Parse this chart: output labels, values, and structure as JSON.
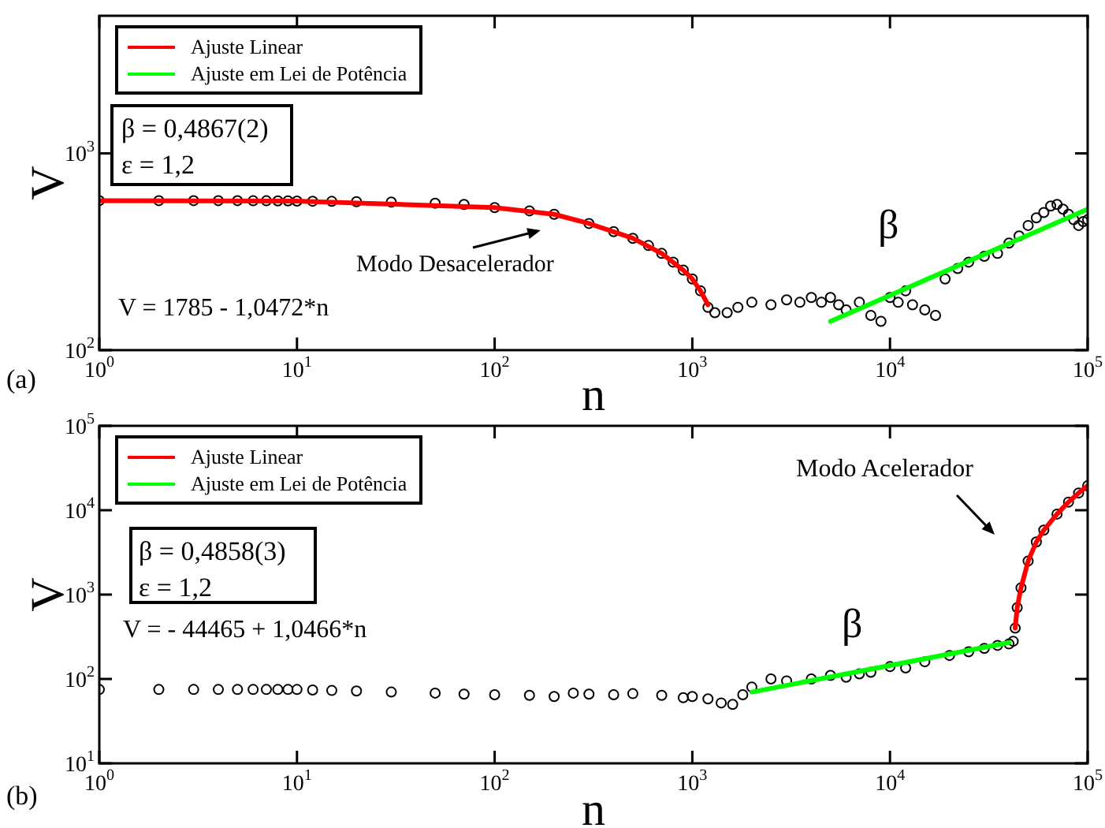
{
  "chart_data": [
    {
      "type": "scatter",
      "xlabel": "n",
      "ylabel": "V",
      "log": "xy",
      "legend": "top left",
      "xlim": [
        1,
        100000
      ],
      "ylim": [
        100,
        5000
      ],
      "xticks": [
        {
          "value": 1,
          "label": "10$^{0}$"
        },
        {
          "value": 10,
          "label": "10$^{1}$"
        },
        {
          "value": 100,
          "label": "10$^{2}$"
        },
        {
          "value": 1000,
          "label": "10$^{3}$"
        },
        {
          "value": 10000,
          "label": "10$^{4}$"
        },
        {
          "value": 100000,
          "label": "10$^{5}$"
        }
      ],
      "yticks": [
        {
          "value": 100,
          "label": "10$^{2}$"
        },
        {
          "value": 1000,
          "label": "10$^{3}$"
        }
      ],
      "annotations": [
        "β = 0,4867(2)",
        "ε = 1,2",
        "V = 1785 - 1,0472*n",
        "Modo Desacelerador",
        "β",
        "(a)"
      ],
      "series": [
        {
          "color": "#000000",
          "marker": "circle",
          "x": [
            1,
            2,
            3,
            4,
            5,
            6,
            7,
            8,
            9,
            10,
            12,
            15,
            20,
            30,
            50,
            70,
            100,
            150,
            200,
            300,
            400,
            500,
            600,
            700,
            800,
            900,
            1000,
            1100,
            1200,
            1300,
            1500,
            1700,
            2000,
            2500,
            3000,
            3500,
            4000,
            4500,
            5000,
            5500,
            6000,
            7000,
            8000,
            9000,
            10000,
            11000,
            12000,
            13000,
            15000,
            17000,
            19000,
            22000,
            25000,
            30000,
            35000,
            40000,
            45000,
            50000,
            55000,
            60000,
            65000,
            70000,
            75000,
            80000,
            85000,
            90000,
            95000,
            100000
          ],
          "values": [
            575,
            575,
            575,
            575,
            575,
            574,
            574,
            573,
            573,
            572,
            571,
            570,
            568,
            565,
            558,
            550,
            530,
            510,
            490,
            440,
            400,
            370,
            340,
            310,
            280,
            255,
            230,
            200,
            165,
            155,
            155,
            165,
            175,
            170,
            180,
            175,
            185,
            175,
            185,
            170,
            160,
            175,
            150,
            140,
            185,
            175,
            200,
            170,
            160,
            150,
            230,
            260,
            280,
            300,
            310,
            350,
            380,
            430,
            470,
            500,
            540,
            550,
            520,
            490,
            460,
            430,
            450,
            460
          ]
        },
        {
          "name": "Ajuste Linear",
          "type": "line",
          "color": "#ff0000",
          "x": [
            1,
            10,
            100,
            200,
            300,
            500,
            700,
            900,
            1000,
            1100,
            1200
          ],
          "values": [
            575,
            572,
            530,
            490,
            440,
            370,
            310,
            255,
            230,
            200,
            170
          ]
        },
        {
          "name": "Ajuste em Lei de Potência",
          "type": "line",
          "color": "#00ff00",
          "x": [
            5000,
            100000
          ],
          "values": [
            140,
            520
          ]
        }
      ]
    },
    {
      "type": "scatter",
      "xlabel": "n",
      "ylabel": "V",
      "log": "xy",
      "legend": "top left",
      "xlim": [
        1,
        100000
      ],
      "ylim": [
        10,
        100000
      ],
      "xticks": [
        {
          "value": 1,
          "label": "10$^{0}$"
        },
        {
          "value": 10,
          "label": "10$^{1}$"
        },
        {
          "value": 100,
          "label": "10$^{2}$"
        },
        {
          "value": 1000,
          "label": "10$^{3}$"
        },
        {
          "value": 10000,
          "label": "10$^{4}$"
        },
        {
          "value": 100000,
          "label": "10$^{5}$"
        }
      ],
      "yticks": [
        {
          "value": 10,
          "label": "10$^{1}$"
        },
        {
          "value": 100,
          "label": "10$^{2}$"
        },
        {
          "value": 1000,
          "label": "10$^{3}$"
        },
        {
          "value": 10000,
          "label": "10$^{4}$"
        },
        {
          "value": 100000,
          "label": "10$^{5}$"
        }
      ],
      "annotations": [
        "β = 0,4858(3)",
        "ε = 1,2",
        "V = - 44465 + 1,0466*n",
        "Modo Acelerador",
        "β",
        "(b)"
      ],
      "series": [
        {
          "color": "#000000",
          "marker": "circle",
          "x": [
            1,
            2,
            3,
            4,
            5,
            6,
            7,
            8,
            9,
            10,
            12,
            15,
            20,
            30,
            50,
            70,
            100,
            150,
            200,
            250,
            300,
            400,
            500,
            700,
            900,
            1000,
            1200,
            1400,
            1600,
            1800,
            2000,
            2500,
            3000,
            4000,
            5000,
            6000,
            7000,
            8000,
            10000,
            12000,
            15000,
            20000,
            25000,
            30000,
            35000,
            40000,
            42000,
            43000,
            44000,
            46000,
            50000,
            55000,
            60000,
            70000,
            80000,
            90000,
            100000
          ],
          "values": [
            75,
            75,
            75,
            75,
            75,
            75,
            75,
            75,
            75,
            75,
            74,
            73,
            72,
            70,
            68,
            66,
            65,
            64,
            62,
            68,
            66,
            65,
            67,
            64,
            60,
            62,
            58,
            52,
            50,
            65,
            80,
            100,
            95,
            100,
            110,
            105,
            115,
            120,
            140,
            135,
            160,
            190,
            210,
            230,
            250,
            260,
            280,
            400,
            700,
            1200,
            2500,
            4200,
            5800,
            9000,
            12500,
            16000,
            19500
          ]
        },
        {
          "name": "Ajuste Linear",
          "type": "line",
          "color": "#ff0000",
          "x": [
            43000,
            44000,
            46000,
            50000,
            55000,
            60000,
            70000,
            80000,
            90000,
            100000
          ],
          "values": [
            400,
            700,
            1200,
            2500,
            4200,
            5800,
            9000,
            12500,
            16000,
            19500
          ]
        },
        {
          "name": "Ajuste em Lei de Potência",
          "type": "line",
          "color": "#00ff00",
          "x": [
            2000,
            40000
          ],
          "values": [
            70,
            270
          ]
        }
      ]
    }
  ]
}
